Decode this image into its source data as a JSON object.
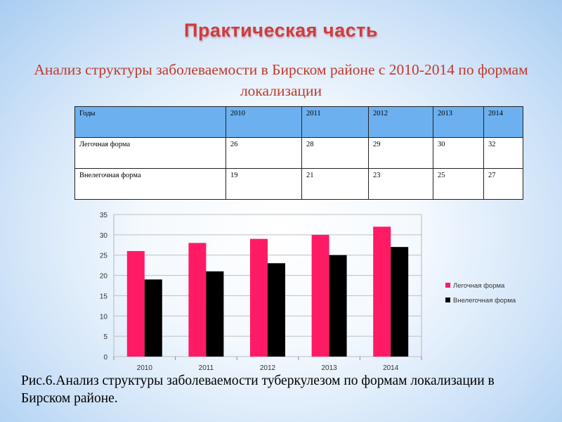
{
  "slide": {
    "title": "Практическая часть",
    "subtitle": "Анализ структуры заболеваемости в Бирском районе с 2010-2014 по формам локализации",
    "caption": "Рис.6.Анализ структуры заболеваемости туберкулезом по формам локализации в Бирском районе."
  },
  "table": {
    "header": [
      "Годы",
      "2010",
      "2011",
      "2012",
      "2013",
      "2014"
    ],
    "rows": [
      [
        "Легочная форма",
        "26",
        "28",
        "29",
        "30",
        "32"
      ],
      [
        "Внелегочная форма",
        "19",
        "21",
        "23",
        "25",
        "27"
      ]
    ]
  },
  "colors": {
    "title": "#d13b3b",
    "table_header": "#6cb0ef",
    "series_1": "#ff1a66",
    "series_2": "#000000"
  },
  "chart_data": {
    "type": "bar",
    "categories": [
      "2010",
      "2011",
      "2012",
      "2013",
      "2014"
    ],
    "series": [
      {
        "name": "Легочная форма",
        "values": [
          26,
          28,
          29,
          30,
          32
        ],
        "color": "#ff1a66"
      },
      {
        "name": "Внелегочная форма",
        "values": [
          19,
          21,
          23,
          25,
          27
        ],
        "color": "#000000"
      }
    ],
    "ylim": [
      0,
      35
    ],
    "yticks": [
      0,
      5,
      10,
      15,
      20,
      25,
      30,
      35
    ],
    "grid": true,
    "legend": "right",
    "title": "",
    "xlabel": "",
    "ylabel": ""
  }
}
